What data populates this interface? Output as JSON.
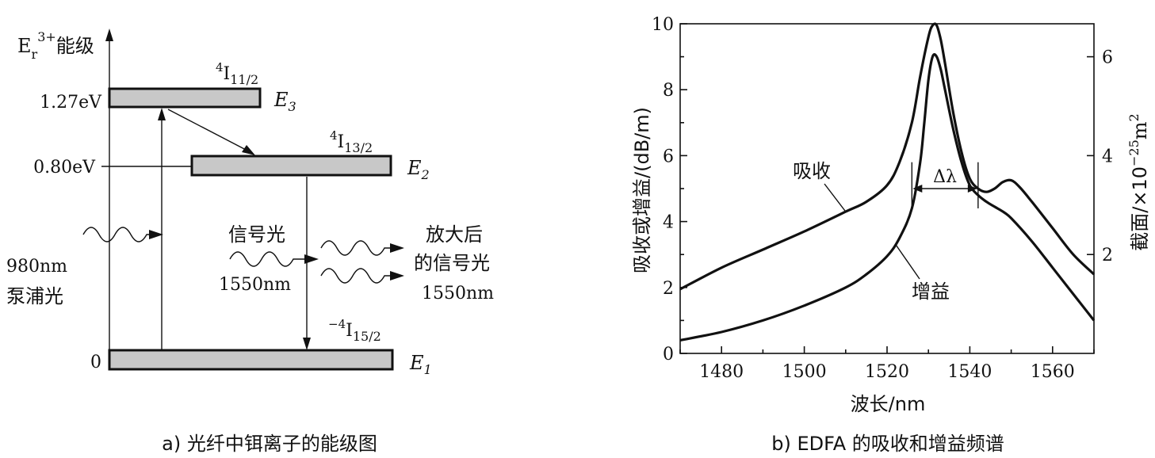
{
  "diagram_a": {
    "caption": "a) 光纤中铒离子的能级图",
    "axis_label_base": "E",
    "axis_label_sub": "r",
    "axis_label_sup": "3+",
    "axis_label_suffix": "能级",
    "levels": [
      {
        "energy": "1.27eV",
        "term": "I",
        "term_sup": "4",
        "term_sub": "11/2",
        "name": "E",
        "name_sub": "3"
      },
      {
        "energy": "0.80eV",
        "term": "I",
        "term_sup": "4",
        "term_sub": "13/2",
        "name": "E",
        "name_sub": "2"
      },
      {
        "energy": "0",
        "term": "I",
        "term_sup": "−4",
        "term_sub": "15/2",
        "name": "E",
        "name_sub": "1"
      }
    ],
    "pump_label_1": "980nm",
    "pump_label_2": "泵浦光",
    "signal_label": "信号光",
    "signal_wavelength": "1550nm",
    "amplified_label_1": "放大后",
    "amplified_label_2": "的信号光",
    "amplified_wavelength": "1550nm"
  },
  "chart_data": {
    "type": "line",
    "caption": "b) EDFA 的吸收和增益频谱",
    "xlabel": "波长/nm",
    "ylabel_left": "吸收或增益/(dB/m)",
    "ylabel_right_text": "截面/×10",
    "ylabel_right_sup": "−25",
    "ylabel_right_unit": "m",
    "ylabel_right_unit_sup": "2",
    "xlim": [
      1470,
      1570
    ],
    "ylim": [
      0,
      10
    ],
    "x_ticks": [
      1480,
      1500,
      1520,
      1540,
      1560
    ],
    "y_ticks": [
      0,
      2,
      4,
      6,
      8,
      10
    ],
    "y2_ticks": [
      2,
      4,
      6
    ],
    "y2_scale": 0.6667,
    "delta_label": "Δλ",
    "delta_range": [
      1526,
      1542
    ],
    "series": [
      {
        "name": "吸收",
        "x": [
          1470,
          1480,
          1490,
          1500,
          1510,
          1515,
          1520,
          1523,
          1526,
          1528,
          1530,
          1531,
          1532,
          1533,
          1534,
          1536,
          1538,
          1540,
          1542,
          1544,
          1546,
          1548,
          1550,
          1552,
          1555,
          1560,
          1565,
          1570
        ],
        "y": [
          1.95,
          2.6,
          3.15,
          3.7,
          4.3,
          4.6,
          5.1,
          5.8,
          7.0,
          8.4,
          9.6,
          9.95,
          9.95,
          9.5,
          8.8,
          7.3,
          6.1,
          5.3,
          5.0,
          4.9,
          5.0,
          5.2,
          5.25,
          5.05,
          4.6,
          3.8,
          3.0,
          2.4
        ]
      },
      {
        "name": "增益",
        "x": [
          1470,
          1480,
          1490,
          1500,
          1510,
          1515,
          1520,
          1523,
          1526,
          1528,
          1529,
          1530,
          1531,
          1532,
          1533,
          1534,
          1536,
          1538,
          1540,
          1542,
          1544,
          1546,
          1548,
          1550,
          1555,
          1560,
          1565,
          1570
        ],
        "y": [
          0.4,
          0.65,
          1.0,
          1.45,
          2.0,
          2.4,
          2.95,
          3.5,
          4.4,
          5.8,
          7.0,
          8.3,
          9.0,
          9.0,
          8.6,
          8.0,
          6.8,
          5.8,
          5.1,
          4.8,
          4.6,
          4.45,
          4.3,
          4.1,
          3.4,
          2.6,
          1.8,
          1.0
        ]
      }
    ],
    "annotations": [
      {
        "text": "吸收",
        "series": 0
      },
      {
        "text": "增益",
        "series": 1
      }
    ]
  }
}
